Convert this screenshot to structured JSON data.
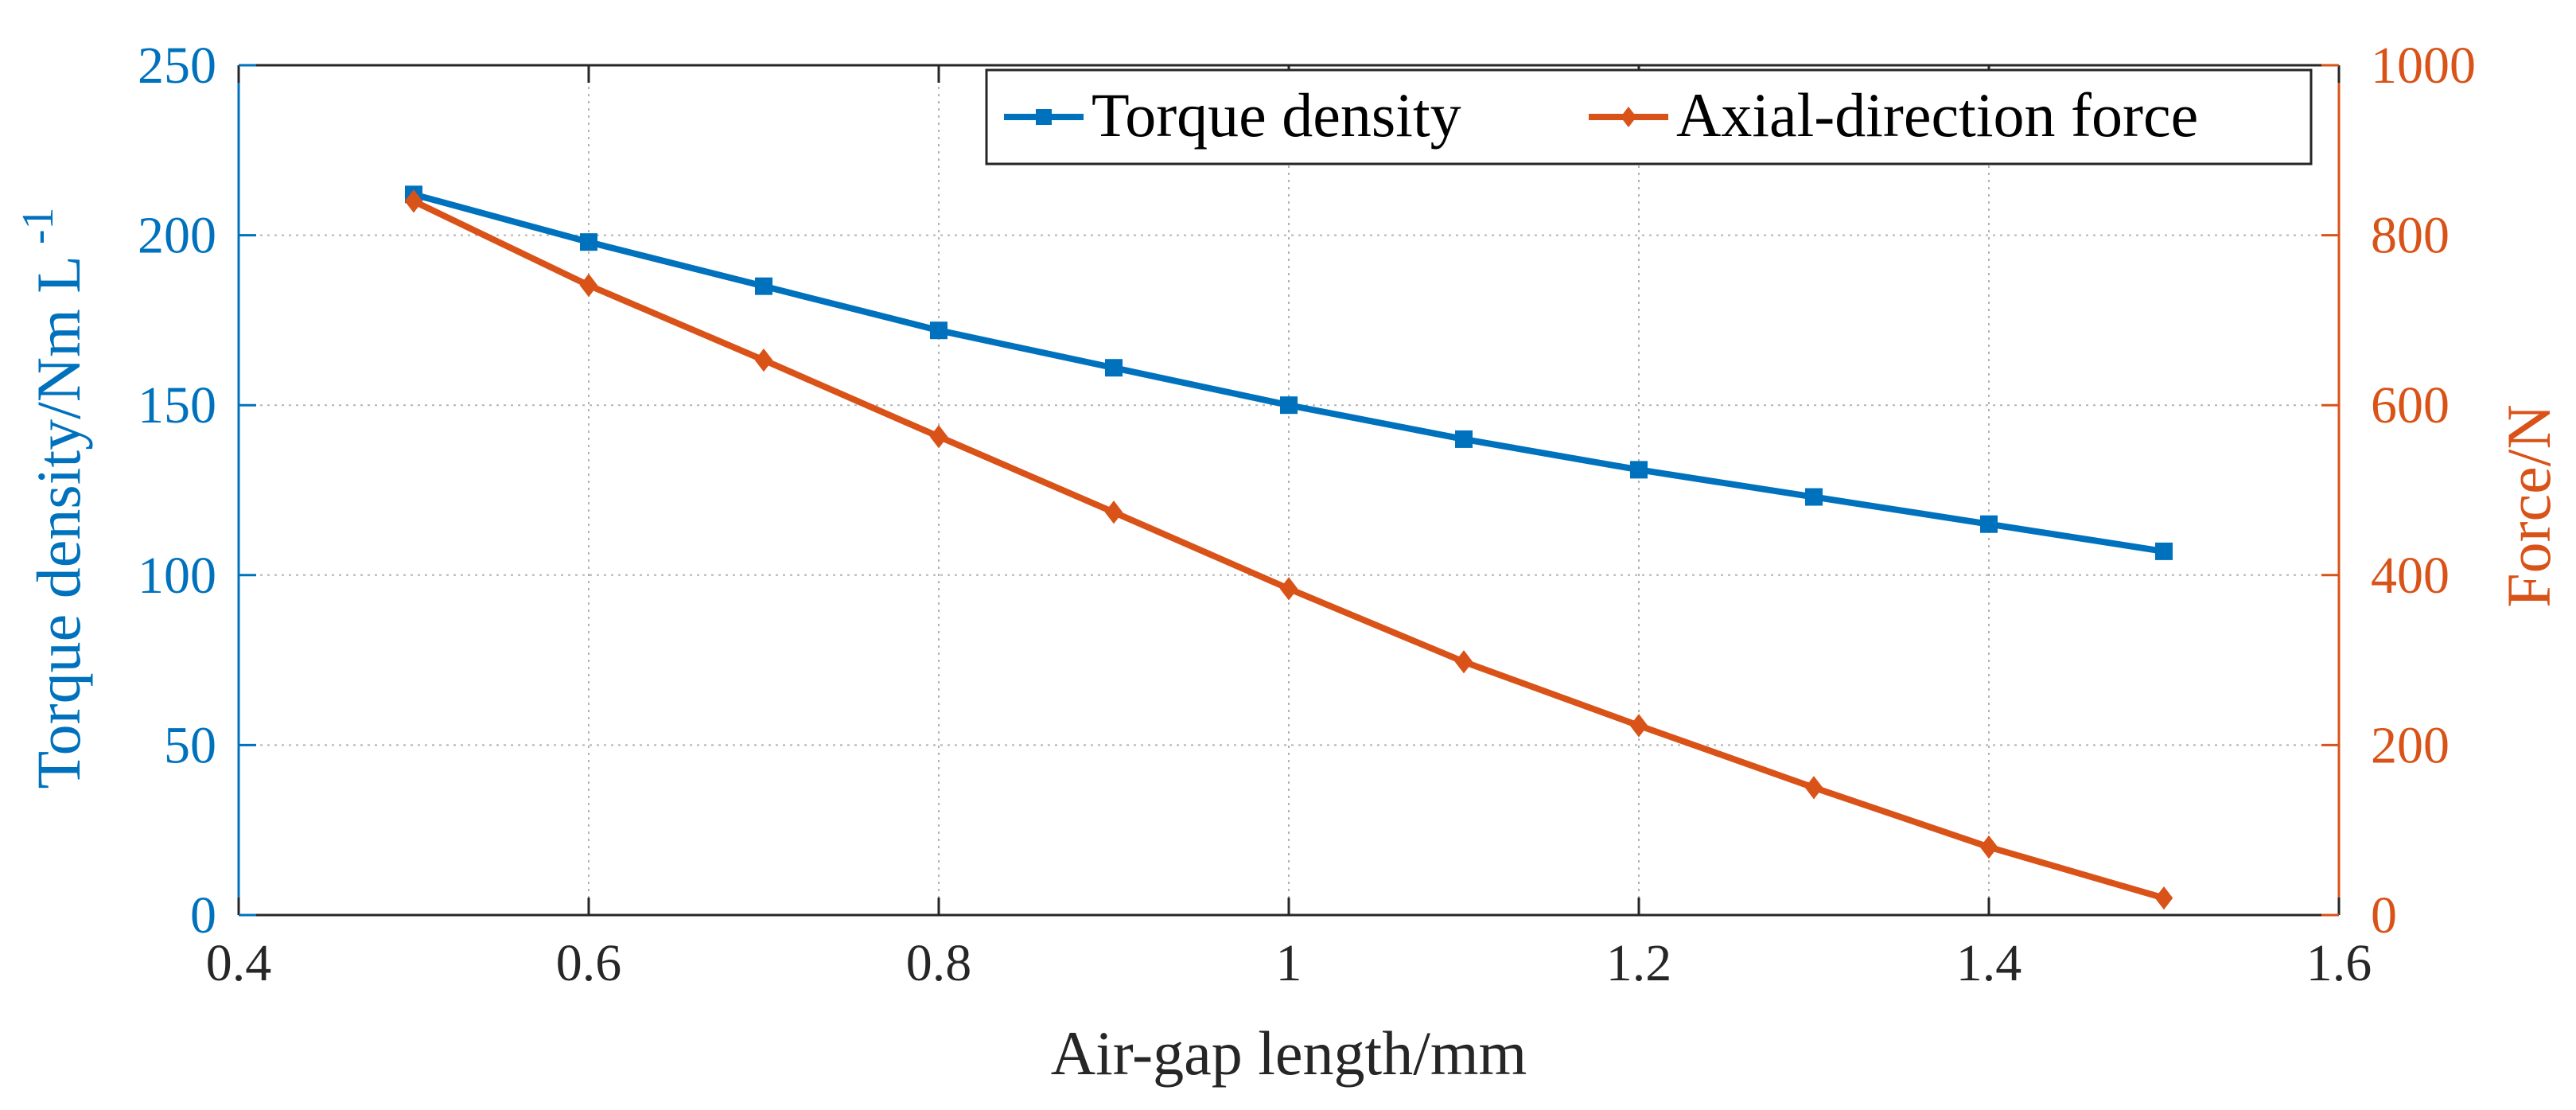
{
  "chart_data": {
    "type": "line",
    "title": "",
    "xlabel": "Air-gap length/mm",
    "ylabel_left": "Torque density/Nm L",
    "ylabel_left_superscript": "-1",
    "ylabel_right": "Force/N",
    "xlim": [
      0.4,
      1.6
    ],
    "ylim_left": [
      0,
      250
    ],
    "ylim_right": [
      0,
      1000
    ],
    "x_ticks": [
      0.4,
      0.6,
      0.8,
      1.0,
      1.2,
      1.4,
      1.6
    ],
    "x_tick_labels": [
      "0.4",
      "0.6",
      "0.8",
      "1",
      "1.2",
      "1.4",
      "1.6"
    ],
    "y_left_ticks": [
      0,
      50,
      100,
      150,
      200,
      250
    ],
    "y_left_tick_labels": [
      "0",
      "50",
      "100",
      "150",
      "200",
      "250"
    ],
    "y_right_ticks": [
      0,
      200,
      400,
      600,
      800,
      1000
    ],
    "y_right_tick_labels": [
      "0",
      "200",
      "400",
      "600",
      "800",
      "1000"
    ],
    "grid": true,
    "legend_position": "top-right",
    "x": [
      0.5,
      0.6,
      0.7,
      0.8,
      0.9,
      1.0,
      1.1,
      1.2,
      1.3,
      1.4,
      1.5
    ],
    "series": [
      {
        "name": "Torque density",
        "axis": "left",
        "marker": "square",
        "color": "#0072BD",
        "values": [
          212,
          198,
          185,
          172,
          161,
          150,
          140,
          131,
          123,
          115,
          107
        ]
      },
      {
        "name": "Axial-direction force",
        "axis": "right",
        "marker": "diamond",
        "color": "#D95319",
        "values": [
          840,
          741,
          653,
          563,
          474,
          384,
          298,
          223,
          150,
          80,
          20
        ]
      }
    ],
    "colors": {
      "left_axis": "#0072BD",
      "right_axis": "#D95319",
      "frame": "#262626",
      "grid": "#b3b3b3"
    }
  }
}
